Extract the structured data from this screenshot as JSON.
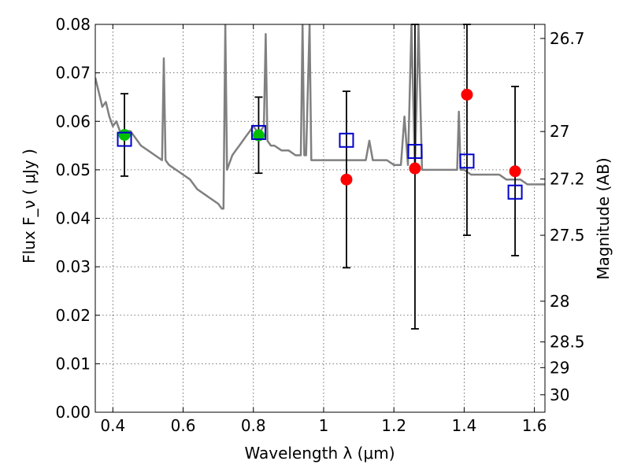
{
  "chart_data": {
    "type": "scatter",
    "xlabel": "Wavelength  λ (μm)",
    "ylabel": "Flux  F_ν  ( μJy )",
    "ylabel_right": "Magnitude (AB)",
    "xlim": [
      0.35,
      1.63
    ],
    "ylim": [
      0.0,
      0.08
    ],
    "grid": true,
    "x_ticks": [
      0.4,
      0.6,
      0.8,
      1.0,
      1.2,
      1.4,
      1.6
    ],
    "x_tick_labels": [
      "0.4",
      "0.6",
      "0.8",
      "1",
      "1.2",
      "1.4",
      "1.6"
    ],
    "y_ticks": [
      0.0,
      0.01,
      0.02,
      0.03,
      0.04,
      0.05,
      0.06,
      0.07,
      0.08
    ],
    "y_tick_labels": [
      "0.00",
      "0.01",
      "0.02",
      "0.03",
      "0.04",
      "0.05",
      "0.06",
      "0.07",
      "0.08"
    ],
    "right_ticks": [
      {
        "flux": 0.0771,
        "label": "26.7"
      },
      {
        "flux": 0.0579,
        "label": "27"
      },
      {
        "flux": 0.0481,
        "label": "27.2"
      },
      {
        "flux": 0.0365,
        "label": "27.5"
      },
      {
        "flux": 0.0229,
        "label": "28"
      },
      {
        "flux": 0.0145,
        "label": "28.5"
      },
      {
        "flux": 0.0092,
        "label": "29"
      },
      {
        "flux": 0.0036,
        "label": "30"
      }
    ],
    "model_spectrum": {
      "color": "#808080",
      "x": [
        0.35,
        0.36,
        0.37,
        0.38,
        0.39,
        0.4,
        0.41,
        0.42,
        0.43,
        0.44,
        0.45,
        0.46,
        0.48,
        0.5,
        0.52,
        0.54,
        0.545,
        0.55,
        0.56,
        0.58,
        0.6,
        0.62,
        0.64,
        0.66,
        0.68,
        0.7,
        0.71,
        0.715,
        0.72,
        0.725,
        0.73,
        0.74,
        0.75,
        0.76,
        0.77,
        0.78,
        0.79,
        0.8,
        0.81,
        0.82,
        0.83,
        0.835,
        0.84,
        0.85,
        0.86,
        0.88,
        0.9,
        0.92,
        0.935,
        0.94,
        0.945,
        0.95,
        0.96,
        0.965,
        0.97,
        0.98,
        1.0,
        1.02,
        1.05,
        1.08,
        1.1,
        1.12,
        1.13,
        1.14,
        1.16,
        1.18,
        1.2,
        1.22,
        1.23,
        1.24,
        1.25,
        1.26,
        1.27,
        1.28,
        1.3,
        1.32,
        1.34,
        1.36,
        1.38,
        1.385,
        1.39,
        1.4,
        1.42,
        1.44,
        1.46,
        1.48,
        1.5,
        1.52,
        1.54,
        1.56,
        1.58,
        1.6,
        1.63
      ],
      "y": [
        0.069,
        0.066,
        0.063,
        0.064,
        0.061,
        0.059,
        0.06,
        0.058,
        0.057,
        0.058,
        0.058,
        0.057,
        0.055,
        0.054,
        0.053,
        0.052,
        0.073,
        0.052,
        0.051,
        0.05,
        0.049,
        0.048,
        0.046,
        0.045,
        0.044,
        0.043,
        0.042,
        0.042,
        0.08,
        0.05,
        0.051,
        0.053,
        0.054,
        0.055,
        0.056,
        0.057,
        0.058,
        0.059,
        0.058,
        0.058,
        0.059,
        0.078,
        0.056,
        0.055,
        0.055,
        0.054,
        0.054,
        0.053,
        0.053,
        0.08,
        0.053,
        0.053,
        0.08,
        0.052,
        0.052,
        0.052,
        0.052,
        0.052,
        0.052,
        0.052,
        0.052,
        0.052,
        0.056,
        0.052,
        0.052,
        0.052,
        0.051,
        0.051,
        0.061,
        0.051,
        0.08,
        0.05,
        0.08,
        0.05,
        0.05,
        0.05,
        0.05,
        0.05,
        0.05,
        0.062,
        0.05,
        0.05,
        0.049,
        0.049,
        0.049,
        0.049,
        0.049,
        0.048,
        0.048,
        0.048,
        0.047,
        0.047,
        0.047
      ]
    },
    "observed_green": {
      "color": "#00c000",
      "x": [
        0.433,
        0.815
      ],
      "y": [
        0.0572,
        0.0571
      ],
      "err_low": [
        0.0487,
        0.0493
      ],
      "err_high": [
        0.0657,
        0.065
      ]
    },
    "observed_red": {
      "color": "#ff0000",
      "x": [
        1.065,
        1.26,
        1.408,
        1.545
      ],
      "y": [
        0.048,
        0.0503,
        0.0655,
        0.0497
      ],
      "err_low": [
        0.0298,
        0.0172,
        0.0365,
        0.0323
      ],
      "err_high": [
        0.0662,
        0.08,
        0.08,
        0.0672
      ]
    },
    "model_boxes": {
      "color": "#0000cc",
      "x": [
        0.433,
        0.815,
        1.065,
        1.26,
        1.408,
        1.545
      ],
      "y": [
        0.0563,
        0.0577,
        0.0561,
        0.0538,
        0.0518,
        0.0454
      ]
    }
  }
}
